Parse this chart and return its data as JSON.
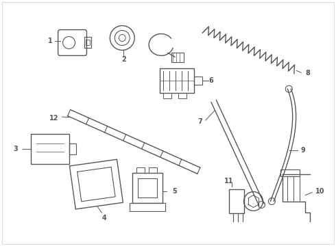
{
  "bg_color": "#ffffff",
  "line_color": "#555555",
  "label_color": "#111111",
  "fig_width": 4.9,
  "fig_height": 3.6,
  "dpi": 100
}
